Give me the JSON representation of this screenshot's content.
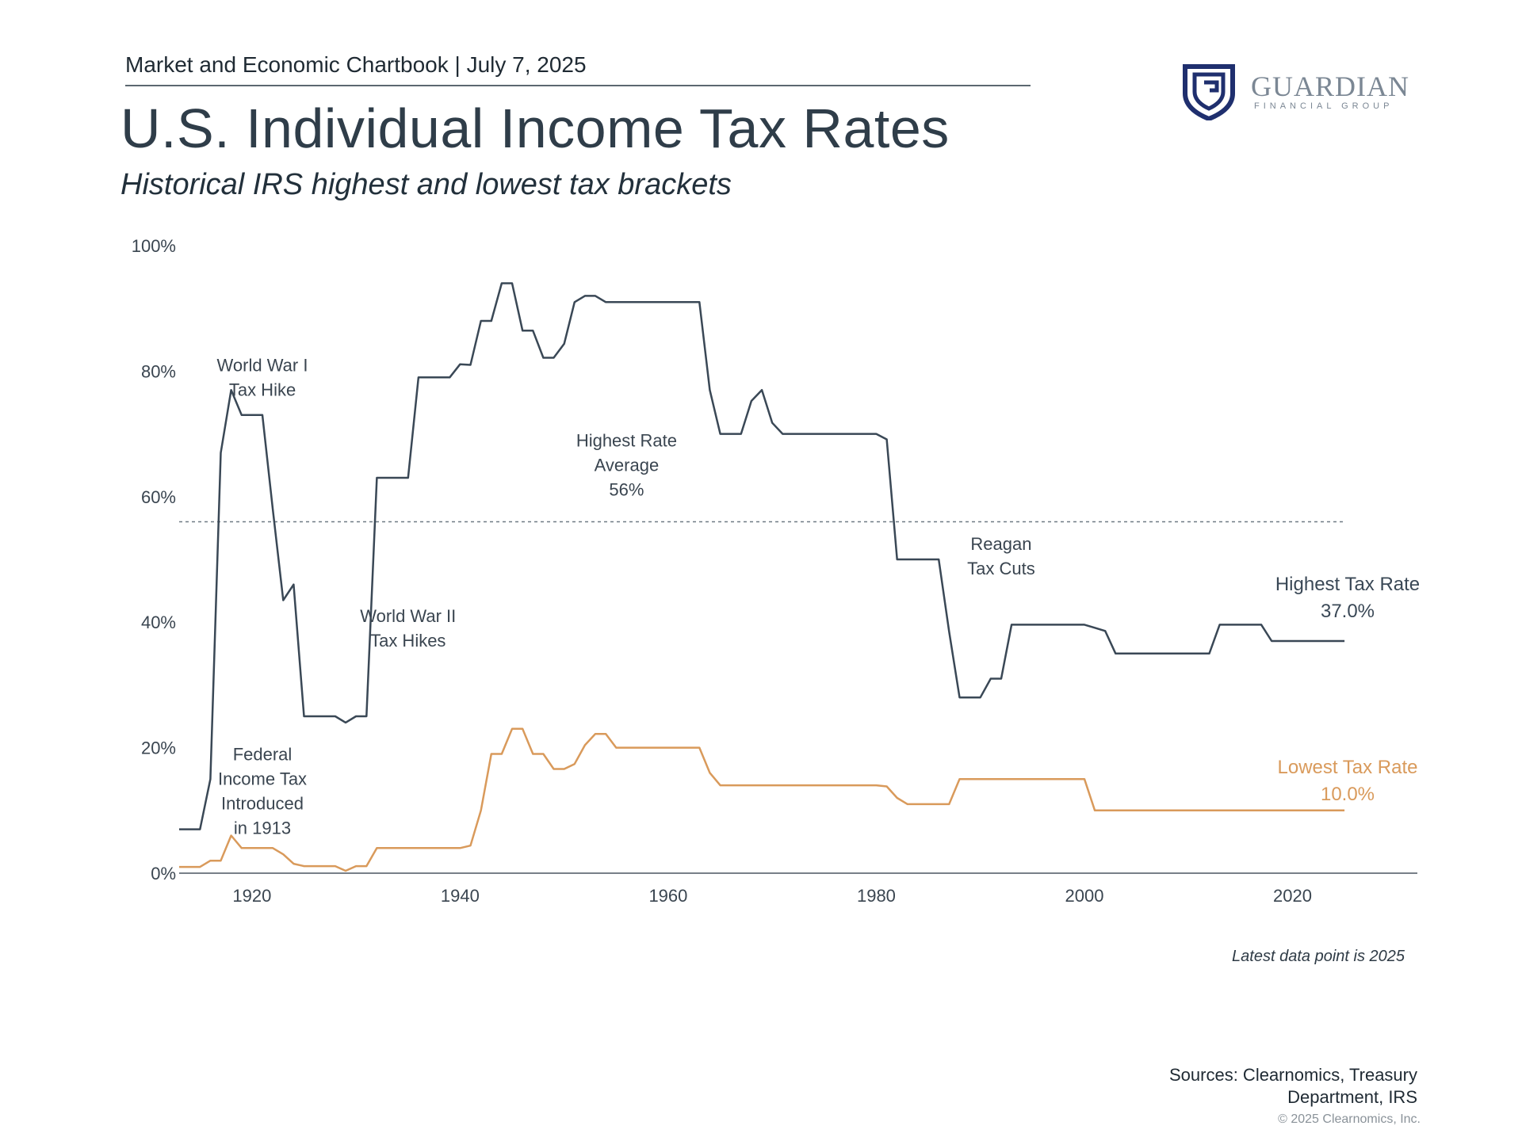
{
  "header": {
    "top_line": "Market and Economic Chartbook | July 7, 2025",
    "title": "U.S. Individual Income Tax Rates",
    "subtitle": "Historical IRS highest and lowest tax brackets"
  },
  "logo": {
    "name": "GUARDIAN",
    "sub": "FINANCIAL GROUP",
    "icon": "shield-g-icon",
    "color": "#1f2f6e"
  },
  "footer": {
    "latest_note": "Latest data point is 2025",
    "sources": "Sources: Clearnomics, Treasury Department, IRS",
    "copyright": "© 2025 Clearnomics, Inc."
  },
  "chart_data": {
    "type": "line",
    "title": "U.S. Individual Income Tax Rates",
    "xlim": [
      1913,
      2032
    ],
    "ylim": [
      0,
      100
    ],
    "x_ticks": [
      1920,
      1940,
      1960,
      1980,
      2000,
      2020
    ],
    "y_ticks": [
      0,
      20,
      40,
      60,
      80,
      100
    ],
    "x_tick_labels": [
      "1920",
      "1940",
      "1960",
      "1980",
      "2000",
      "2020"
    ],
    "y_tick_labels": [
      "0%",
      "20%",
      "40%",
      "60%",
      "80%",
      "100%"
    ],
    "grid": false,
    "colors": {
      "highest": "#3a4856",
      "lowest": "#d99a5b",
      "average_line": "#6f7a84"
    },
    "series": [
      {
        "name": "Highest Tax Rate",
        "label_value": "37.0%",
        "color": "#3a4856",
        "points": [
          [
            1913,
            7
          ],
          [
            1915,
            7
          ],
          [
            1916,
            15
          ],
          [
            1917,
            67
          ],
          [
            1918,
            77
          ],
          [
            1919,
            73
          ],
          [
            1921,
            73
          ],
          [
            1922,
            58
          ],
          [
            1923,
            43.5
          ],
          [
            1924,
            46
          ],
          [
            1925,
            25
          ],
          [
            1928,
            25
          ],
          [
            1929,
            24
          ],
          [
            1930,
            25
          ],
          [
            1931,
            25
          ],
          [
            1932,
            63
          ],
          [
            1935,
            63
          ],
          [
            1936,
            79
          ],
          [
            1939,
            79
          ],
          [
            1940,
            81.1
          ],
          [
            1941,
            81
          ],
          [
            1942,
            88
          ],
          [
            1943,
            88
          ],
          [
            1944,
            94
          ],
          [
            1945,
            94
          ],
          [
            1946,
            86.45
          ],
          [
            1947,
            86.45
          ],
          [
            1948,
            82.13
          ],
          [
            1949,
            82.13
          ],
          [
            1950,
            84.36
          ],
          [
            1951,
            91
          ],
          [
            1952,
            92
          ],
          [
            1953,
            92
          ],
          [
            1954,
            91
          ],
          [
            1963,
            91
          ],
          [
            1964,
            77
          ],
          [
            1965,
            70
          ],
          [
            1967,
            70
          ],
          [
            1968,
            75.25
          ],
          [
            1969,
            77
          ],
          [
            1970,
            71.75
          ],
          [
            1971,
            70
          ],
          [
            1980,
            70
          ],
          [
            1981,
            69.125
          ],
          [
            1982,
            50
          ],
          [
            1986,
            50
          ],
          [
            1987,
            38.5
          ],
          [
            1988,
            28
          ],
          [
            1990,
            28
          ],
          [
            1991,
            31
          ],
          [
            1992,
            31
          ],
          [
            1993,
            39.6
          ],
          [
            2000,
            39.6
          ],
          [
            2001,
            39.1
          ],
          [
            2002,
            38.6
          ],
          [
            2003,
            35
          ],
          [
            2012,
            35
          ],
          [
            2013,
            39.6
          ],
          [
            2017,
            39.6
          ],
          [
            2018,
            37
          ],
          [
            2025,
            37
          ]
        ]
      },
      {
        "name": "Lowest Tax Rate",
        "label_value": "10.0%",
        "color": "#d99a5b",
        "points": [
          [
            1913,
            1
          ],
          [
            1915,
            1
          ],
          [
            1916,
            2
          ],
          [
            1917,
            2
          ],
          [
            1918,
            6
          ],
          [
            1919,
            4
          ],
          [
            1922,
            4
          ],
          [
            1923,
            3
          ],
          [
            1924,
            1.5
          ],
          [
            1925,
            1.125
          ],
          [
            1928,
            1.125
          ],
          [
            1929,
            0.375
          ],
          [
            1930,
            1.125
          ],
          [
            1931,
            1.125
          ],
          [
            1932,
            4
          ],
          [
            1940,
            4
          ],
          [
            1941,
            4.4
          ],
          [
            1942,
            10
          ],
          [
            1943,
            19
          ],
          [
            1944,
            19
          ],
          [
            1945,
            23
          ],
          [
            1946,
            23
          ],
          [
            1947,
            19
          ],
          [
            1948,
            19
          ],
          [
            1949,
            16.6
          ],
          [
            1950,
            16.6
          ],
          [
            1951,
            17.4
          ],
          [
            1952,
            20.4
          ],
          [
            1953,
            22.2
          ],
          [
            1954,
            22.2
          ],
          [
            1955,
            20
          ],
          [
            1963,
            20
          ],
          [
            1964,
            16
          ],
          [
            1965,
            14
          ],
          [
            1980,
            14
          ],
          [
            1981,
            13.825
          ],
          [
            1982,
            12
          ],
          [
            1983,
            11
          ],
          [
            1987,
            11
          ],
          [
            1988,
            15
          ],
          [
            2000,
            15
          ],
          [
            2001,
            10
          ],
          [
            2025,
            10
          ]
        ]
      }
    ],
    "average": {
      "value": 56,
      "label": "Highest Rate Average 56%"
    },
    "annotations": [
      {
        "lines": [
          "World War I",
          "Tax Hike"
        ],
        "x": 1921,
        "y": 80
      },
      {
        "lines": [
          "World War II",
          "Tax Hikes"
        ],
        "x": 1935,
        "y": 40
      },
      {
        "lines": [
          "Highest Rate",
          "Average",
          "56%"
        ],
        "x": 1956,
        "y": 68
      },
      {
        "lines": [
          "Reagan",
          "Tax Cuts"
        ],
        "x": 1992,
        "y": 51.5
      },
      {
        "lines": [
          "Federal",
          "Income Tax",
          "Introduced",
          "in 1913"
        ],
        "x": 1921,
        "y": 18
      }
    ]
  }
}
